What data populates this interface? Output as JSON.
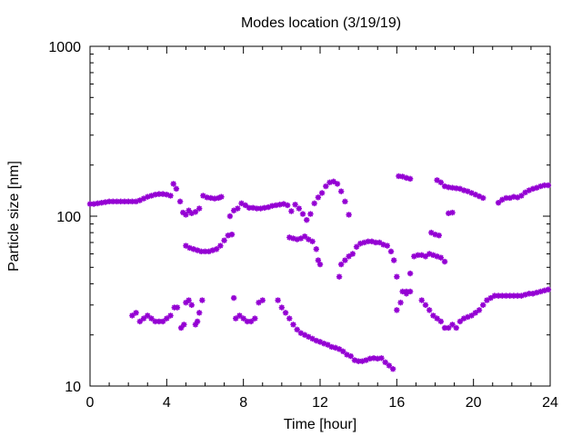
{
  "chart_data": {
    "type": "scatter",
    "title": "Modes location (3/19/19)",
    "xlabel": "Time [hour]",
    "ylabel": "Particle size [nm]",
    "xlim": [
      0,
      24
    ],
    "ylim": [
      10,
      1000
    ],
    "yscale": "log",
    "grid": false,
    "marker_color": "#9400d3",
    "x_ticks": [
      0,
      4,
      8,
      12,
      16,
      20,
      24
    ],
    "x_tick_labels": [
      "0",
      "4",
      "8",
      "12",
      "16",
      "20",
      "24"
    ],
    "y_ticks": [
      10,
      100,
      1000
    ],
    "y_tick_labels": [
      "10",
      "100",
      "1000"
    ],
    "series": [
      {
        "points": [
          [
            0.0,
            118
          ],
          [
            0.2,
            118
          ],
          [
            0.4,
            119
          ],
          [
            0.6,
            120
          ],
          [
            0.8,
            121
          ],
          [
            1.0,
            122
          ],
          [
            1.2,
            122
          ],
          [
            1.4,
            122
          ],
          [
            1.6,
            122
          ],
          [
            1.8,
            122
          ],
          [
            2.0,
            122
          ],
          [
            2.2,
            122
          ],
          [
            2.4,
            122
          ],
          [
            2.6,
            124
          ],
          [
            2.8,
            127
          ],
          [
            3.0,
            130
          ],
          [
            3.2,
            132
          ],
          [
            3.4,
            134
          ],
          [
            3.6,
            135
          ],
          [
            3.8,
            135
          ],
          [
            4.0,
            134
          ],
          [
            4.2,
            132
          ],
          [
            4.35,
            155
          ],
          [
            4.5,
            145
          ],
          [
            4.7,
            122
          ],
          [
            4.85,
            105
          ],
          [
            5.0,
            102
          ],
          [
            5.15,
            108
          ],
          [
            5.3,
            104
          ],
          [
            5.5,
            106
          ],
          [
            5.7,
            111
          ],
          [
            5.9,
            132
          ],
          [
            6.1,
            129
          ],
          [
            6.3,
            128
          ],
          [
            6.5,
            127
          ],
          [
            6.7,
            128
          ],
          [
            6.85,
            130
          ],
          [
            7.3,
            100
          ],
          [
            7.5,
            108
          ],
          [
            7.7,
            111
          ],
          [
            7.9,
            119
          ],
          [
            8.1,
            116
          ],
          [
            8.3,
            112
          ],
          [
            8.5,
            112
          ],
          [
            8.7,
            111
          ],
          [
            8.9,
            111
          ],
          [
            9.1,
            112
          ],
          [
            9.3,
            113
          ],
          [
            9.5,
            115
          ],
          [
            9.7,
            116
          ],
          [
            9.9,
            117
          ],
          [
            10.1,
            118
          ],
          [
            10.3,
            116
          ],
          [
            10.5,
            107
          ],
          [
            10.7,
            117
          ],
          [
            10.9,
            111
          ],
          [
            11.1,
            103
          ],
          [
            11.3,
            95
          ],
          [
            11.5,
            103
          ],
          [
            11.7,
            119
          ],
          [
            11.9,
            129
          ],
          [
            12.1,
            137
          ],
          [
            12.3,
            150
          ],
          [
            12.5,
            158
          ],
          [
            12.7,
            160
          ],
          [
            12.9,
            155
          ],
          [
            13.1,
            140
          ],
          [
            13.3,
            122
          ],
          [
            13.5,
            102
          ],
          [
            16.1,
            172
          ],
          [
            16.3,
            171
          ],
          [
            16.5,
            168
          ],
          [
            16.7,
            166
          ],
          [
            18.1,
            163
          ],
          [
            18.3,
            158
          ],
          [
            18.5,
            150
          ],
          [
            18.7,
            148
          ],
          [
            18.9,
            147
          ],
          [
            19.1,
            146
          ],
          [
            19.3,
            145
          ],
          [
            19.5,
            142
          ],
          [
            19.7,
            140
          ],
          [
            19.9,
            137
          ],
          [
            20.1,
            134
          ],
          [
            20.3,
            131
          ],
          [
            20.5,
            128
          ],
          [
            21.3,
            120
          ],
          [
            21.5,
            125
          ],
          [
            21.7,
            128
          ],
          [
            21.9,
            128
          ],
          [
            22.1,
            130
          ],
          [
            22.3,
            129
          ],
          [
            22.5,
            132
          ],
          [
            22.7,
            138
          ],
          [
            22.9,
            142
          ],
          [
            23.1,
            145
          ],
          [
            23.3,
            147
          ],
          [
            23.5,
            150
          ],
          [
            23.7,
            152
          ],
          [
            23.9,
            152
          ]
        ]
      },
      {
        "points": [
          [
            5.0,
            67
          ],
          [
            5.2,
            65
          ],
          [
            5.4,
            64
          ],
          [
            5.6,
            63
          ],
          [
            5.8,
            62
          ],
          [
            6.0,
            62
          ],
          [
            6.2,
            62
          ],
          [
            6.4,
            63
          ],
          [
            6.6,
            64
          ],
          [
            6.8,
            67
          ],
          [
            7.0,
            72
          ],
          [
            7.2,
            77
          ],
          [
            7.4,
            78
          ],
          [
            10.4,
            75
          ],
          [
            10.6,
            74
          ],
          [
            10.8,
            73
          ],
          [
            11.0,
            74
          ],
          [
            11.2,
            76
          ],
          [
            11.4,
            73
          ],
          [
            11.6,
            71
          ],
          [
            11.8,
            64
          ],
          [
            11.9,
            55
          ],
          [
            12.0,
            52
          ],
          [
            13.0,
            44
          ],
          [
            13.1,
            52
          ],
          [
            13.3,
            55
          ],
          [
            13.5,
            58
          ],
          [
            13.7,
            60
          ],
          [
            13.9,
            66
          ],
          [
            14.1,
            69
          ],
          [
            14.3,
            70
          ],
          [
            14.5,
            71
          ],
          [
            14.7,
            71
          ],
          [
            14.9,
            70
          ],
          [
            15.1,
            70
          ],
          [
            15.3,
            68
          ],
          [
            15.5,
            67
          ],
          [
            15.7,
            62
          ],
          [
            15.85,
            55
          ],
          [
            16.0,
            44
          ],
          [
            16.3,
            36
          ],
          [
            16.5,
            36
          ],
          [
            16.7,
            46
          ],
          [
            16.9,
            58
          ],
          [
            17.1,
            59
          ],
          [
            17.3,
            59
          ],
          [
            17.5,
            58
          ],
          [
            17.7,
            60
          ],
          [
            17.9,
            59
          ],
          [
            18.1,
            58
          ],
          [
            18.3,
            57
          ],
          [
            18.5,
            54
          ],
          [
            17.8,
            80
          ],
          [
            18.0,
            78
          ],
          [
            18.2,
            77
          ],
          [
            18.7,
            104
          ],
          [
            18.9,
            105
          ]
        ]
      },
      {
        "points": [
          [
            2.2,
            26
          ],
          [
            2.4,
            27
          ],
          [
            2.6,
            24
          ],
          [
            2.8,
            25
          ],
          [
            3.0,
            26
          ],
          [
            3.2,
            25
          ],
          [
            3.4,
            24
          ],
          [
            3.6,
            24
          ],
          [
            3.8,
            24
          ],
          [
            4.0,
            25
          ],
          [
            4.2,
            26
          ],
          [
            4.4,
            29
          ],
          [
            4.55,
            29
          ],
          [
            4.75,
            22
          ],
          [
            4.9,
            23
          ],
          [
            5.0,
            31
          ],
          [
            5.15,
            32
          ],
          [
            5.3,
            30
          ],
          [
            5.5,
            23
          ],
          [
            5.6,
            24
          ],
          [
            5.7,
            27
          ],
          [
            5.85,
            32
          ],
          [
            7.5,
            33
          ],
          [
            7.6,
            25
          ],
          [
            7.8,
            26
          ],
          [
            8.0,
            25
          ],
          [
            8.2,
            24
          ],
          [
            8.4,
            24
          ],
          [
            8.6,
            25
          ],
          [
            8.8,
            31
          ],
          [
            9.0,
            32
          ],
          [
            9.8,
            32
          ],
          [
            10.0,
            29
          ],
          [
            10.2,
            27
          ],
          [
            10.4,
            25
          ],
          [
            10.6,
            23
          ],
          [
            10.8,
            21.5
          ],
          [
            11.0,
            20.5
          ],
          [
            11.2,
            20
          ],
          [
            11.4,
            19.5
          ],
          [
            11.6,
            19
          ],
          [
            11.8,
            18.5
          ],
          [
            12.0,
            18.2
          ],
          [
            12.2,
            17.8
          ],
          [
            12.4,
            17.5
          ],
          [
            12.6,
            17
          ],
          [
            12.8,
            16.8
          ],
          [
            13.0,
            16.5
          ],
          [
            13.2,
            16
          ],
          [
            13.4,
            15.3
          ],
          [
            13.6,
            15
          ],
          [
            13.8,
            14.2
          ],
          [
            14.0,
            14
          ],
          [
            14.2,
            14
          ],
          [
            14.4,
            14.2
          ],
          [
            14.6,
            14.5
          ],
          [
            14.8,
            14.6
          ],
          [
            15.0,
            14.5
          ],
          [
            15.2,
            14.6
          ],
          [
            15.4,
            13.8
          ],
          [
            15.6,
            13.2
          ],
          [
            15.8,
            12.6
          ],
          [
            16.0,
            28
          ],
          [
            16.2,
            31
          ],
          [
            16.5,
            35
          ],
          [
            16.7,
            36
          ],
          [
            17.3,
            32
          ],
          [
            17.5,
            30
          ],
          [
            17.7,
            28
          ],
          [
            17.9,
            26
          ],
          [
            18.1,
            25
          ],
          [
            18.3,
            24
          ],
          [
            18.5,
            22
          ],
          [
            18.7,
            22
          ],
          [
            18.9,
            23
          ],
          [
            19.1,
            22
          ],
          [
            19.3,
            24
          ],
          [
            19.5,
            25
          ],
          [
            19.7,
            25.5
          ],
          [
            19.9,
            26
          ],
          [
            20.1,
            27
          ],
          [
            20.3,
            28
          ],
          [
            20.5,
            30
          ],
          [
            20.7,
            32
          ],
          [
            20.9,
            33
          ],
          [
            21.1,
            34
          ],
          [
            21.3,
            34
          ],
          [
            21.5,
            34
          ],
          [
            21.7,
            34
          ],
          [
            21.9,
            34
          ],
          [
            22.1,
            34
          ],
          [
            22.3,
            34
          ],
          [
            22.5,
            34
          ],
          [
            22.7,
            34.5
          ],
          [
            22.9,
            35
          ],
          [
            23.1,
            35
          ],
          [
            23.3,
            35.5
          ],
          [
            23.5,
            36
          ],
          [
            23.7,
            36.5
          ],
          [
            23.9,
            37
          ]
        ]
      }
    ]
  }
}
